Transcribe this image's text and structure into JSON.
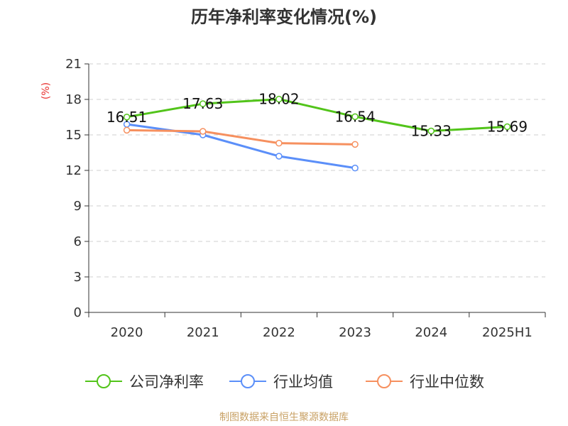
{
  "chart_data": {
    "type": "line",
    "title": "历年净利率变化情况(%)",
    "ylabel": "(%)",
    "xlabel": "",
    "categories": [
      "2020",
      "2021",
      "2022",
      "2023",
      "2024",
      "2025H1"
    ],
    "ylim": [
      0,
      21
    ],
    "yticks": [
      0,
      3,
      6,
      9,
      12,
      15,
      18,
      21
    ],
    "grid": true,
    "legend_position": "bottom",
    "series": [
      {
        "name": "公司净利率",
        "color": "#52c41a",
        "values": [
          16.51,
          17.63,
          18.02,
          16.54,
          15.33,
          15.69
        ],
        "labels": [
          "16.51",
          "17.63",
          "18.02",
          "16.54",
          "15.33",
          "15.69"
        ]
      },
      {
        "name": "行业均值",
        "color": "#5b8ff9",
        "values": [
          15.9,
          15.0,
          13.2,
          12.2,
          null,
          null
        ]
      },
      {
        "name": "行业中位数",
        "color": "#f6905f",
        "values": [
          15.4,
          15.3,
          14.3,
          14.2,
          null,
          null
        ]
      }
    ]
  },
  "footer": {
    "source": "制图数据来自恒生聚源数据库"
  }
}
